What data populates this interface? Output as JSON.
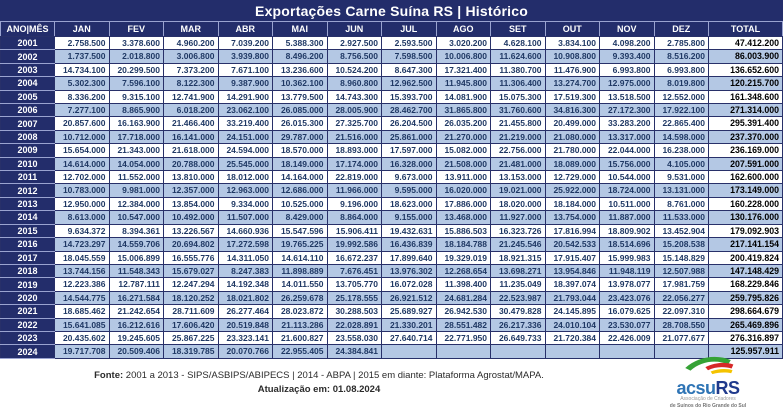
{
  "title": "Exportações Carne Suína RS | Histórico",
  "chart_data": {
    "type": "table",
    "title": "Exportações Carne Suína RS | Histórico",
    "corner_header": "ANO|MÊS",
    "columns": [
      "JAN",
      "FEV",
      "MAR",
      "ABR",
      "MAI",
      "JUN",
      "JUL",
      "AGO",
      "SET",
      "OUT",
      "NOV",
      "DEZ",
      "TOTAL"
    ],
    "rows": [
      {
        "year": "2001",
        "values": [
          "2.758.500",
          "3.378.600",
          "4.960.200",
          "7.039.200",
          "5.388.300",
          "2.927.500",
          "2.593.500",
          "3.020.200",
          "4.628.100",
          "3.834.100",
          "4.098.200",
          "2.785.800"
        ],
        "total": "47.412.200"
      },
      {
        "year": "2002",
        "values": [
          "1.737.500",
          "2.018.800",
          "3.006.800",
          "3.939.800",
          "8.496.200",
          "8.756.500",
          "7.598.500",
          "10.006.800",
          "11.624.600",
          "10.908.800",
          "9.393.400",
          "8.516.200"
        ],
        "total": "86.003.900"
      },
      {
        "year": "2003",
        "values": [
          "14.734.100",
          "20.299.500",
          "7.373.200",
          "7.671.100",
          "13.236.600",
          "10.524.200",
          "8.647.300",
          "17.321.400",
          "11.380.700",
          "11.476.900",
          "6.993.800",
          "6.993.800"
        ],
        "total": "136.652.600"
      },
      {
        "year": "2004",
        "values": [
          "5.302.300",
          "7.596.100",
          "8.122.300",
          "9.387.900",
          "10.362.100",
          "8.960.800",
          "12.962.500",
          "11.945.800",
          "11.306.400",
          "13.274.700",
          "12.975.000",
          "8.019.800"
        ],
        "total": "120.215.700"
      },
      {
        "year": "2005",
        "values": [
          "8.336.200",
          "9.315.100",
          "12.741.900",
          "14.291.900",
          "13.779.500",
          "14.743.300",
          "15.393.700",
          "14.081.900",
          "15.075.300",
          "17.519.300",
          "13.518.500",
          "12.552.000"
        ],
        "total": "161.348.600"
      },
      {
        "year": "2006",
        "values": [
          "7.277.100",
          "8.865.900",
          "6.018.200",
          "23.062.100",
          "26.085.000",
          "28.005.900",
          "28.462.700",
          "31.865.800",
          "31.760.600",
          "34.816.300",
          "27.172.300",
          "17.922.100"
        ],
        "total": "271.314.000"
      },
      {
        "year": "2007",
        "values": [
          "20.857.600",
          "16.163.900",
          "21.466.400",
          "33.219.400",
          "26.015.300",
          "27.325.700",
          "26.204.500",
          "26.035.200",
          "21.455.800",
          "20.499.000",
          "33.283.200",
          "22.865.400"
        ],
        "total": "295.391.400"
      },
      {
        "year": "2008",
        "values": [
          "10.712.000",
          "17.718.000",
          "16.141.000",
          "24.151.000",
          "29.787.000",
          "21.516.000",
          "25.861.000",
          "21.270.000",
          "21.219.000",
          "21.080.000",
          "13.317.000",
          "14.598.000"
        ],
        "total": "237.370.000"
      },
      {
        "year": "2009",
        "values": [
          "15.654.000",
          "21.343.000",
          "21.618.000",
          "24.594.000",
          "18.570.000",
          "18.893.000",
          "17.597.000",
          "15.082.000",
          "22.756.000",
          "21.780.000",
          "22.044.000",
          "16.238.000"
        ],
        "total": "236.169.000"
      },
      {
        "year": "2010",
        "values": [
          "14.614.000",
          "14.054.000",
          "20.788.000",
          "25.545.000",
          "18.149.000",
          "17.174.000",
          "16.328.000",
          "21.508.000",
          "21.481.000",
          "18.089.000",
          "15.756.000",
          "4.105.000"
        ],
        "total": "207.591.000"
      },
      {
        "year": "2011",
        "values": [
          "12.702.000",
          "11.552.000",
          "13.810.000",
          "18.012.000",
          "14.164.000",
          "22.819.000",
          "9.673.000",
          "13.911.000",
          "13.153.000",
          "12.729.000",
          "10.544.000",
          "9.531.000"
        ],
        "total": "162.600.000"
      },
      {
        "year": "2012",
        "values": [
          "10.783.000",
          "9.981.000",
          "12.357.000",
          "12.963.000",
          "12.686.000",
          "11.966.000",
          "9.595.000",
          "16.020.000",
          "19.021.000",
          "25.922.000",
          "18.724.000",
          "13.131.000"
        ],
        "total": "173.149.000"
      },
      {
        "year": "2013",
        "values": [
          "12.950.000",
          "12.384.000",
          "13.854.000",
          "9.334.000",
          "10.525.000",
          "9.196.000",
          "18.623.000",
          "17.886.000",
          "18.020.000",
          "18.184.000",
          "10.511.000",
          "8.761.000"
        ],
        "total": "160.228.000"
      },
      {
        "year": "2014",
        "values": [
          "8.613.000",
          "10.547.000",
          "10.492.000",
          "11.507.000",
          "8.429.000",
          "8.864.000",
          "9.155.000",
          "13.468.000",
          "11.927.000",
          "13.754.000",
          "11.887.000",
          "11.533.000"
        ],
        "total": "130.176.000"
      },
      {
        "year": "2015",
        "values": [
          "9.634.372",
          "8.394.361",
          "13.226.567",
          "14.660.936",
          "15.547.596",
          "15.906.411",
          "19.432.631",
          "15.886.503",
          "16.323.726",
          "17.816.994",
          "18.809.902",
          "13.452.904"
        ],
        "total": "179.092.903"
      },
      {
        "year": "2016",
        "values": [
          "14.723.297",
          "14.559.706",
          "20.694.802",
          "17.272.598",
          "19.765.225",
          "19.992.586",
          "16.436.839",
          "18.184.788",
          "21.245.546",
          "20.542.533",
          "18.514.696",
          "15.208.538"
        ],
        "total": "217.141.154"
      },
      {
        "year": "2017",
        "values": [
          "18.045.559",
          "15.006.899",
          "16.555.776",
          "14.311.050",
          "14.614.110",
          "16.672.237",
          "17.899.640",
          "19.329.019",
          "18.921.315",
          "17.915.407",
          "15.999.983",
          "15.148.829"
        ],
        "total": "200.419.824"
      },
      {
        "year": "2018",
        "values": [
          "13.744.156",
          "11.548.343",
          "15.679.027",
          "8.247.383",
          "11.898.889",
          "7.676.451",
          "13.976.302",
          "12.268.654",
          "13.698.271",
          "13.954.846",
          "11.948.119",
          "12.507.988"
        ],
        "total": "147.148.429"
      },
      {
        "year": "2019",
        "values": [
          "12.223.386",
          "12.787.111",
          "12.247.294",
          "14.192.348",
          "14.011.550",
          "13.705.770",
          "16.072.028",
          "11.398.400",
          "11.235.049",
          "18.397.074",
          "13.978.077",
          "17.981.759"
        ],
        "total": "168.229.846"
      },
      {
        "year": "2020",
        "values": [
          "14.544.775",
          "16.271.584",
          "18.120.252",
          "18.021.802",
          "26.259.678",
          "25.178.555",
          "26.921.512",
          "24.681.284",
          "22.523.987",
          "21.793.044",
          "23.423.076",
          "22.056.277"
        ],
        "total": "259.795.826"
      },
      {
        "year": "2021",
        "values": [
          "18.685.462",
          "21.242.654",
          "28.711.609",
          "26.277.464",
          "28.023.872",
          "30.288.503",
          "25.689.927",
          "26.942.530",
          "30.479.828",
          "24.145.895",
          "16.079.625",
          "22.097.310"
        ],
        "total": "298.664.679"
      },
      {
        "year": "2022",
        "values": [
          "15.641.085",
          "16.212.616",
          "17.606.420",
          "20.519.848",
          "21.113.286",
          "22.028.891",
          "21.330.201",
          "28.551.482",
          "26.217.336",
          "24.010.104",
          "23.530.077",
          "28.708.550"
        ],
        "total": "265.469.896"
      },
      {
        "year": "2023",
        "values": [
          "20.435.602",
          "19.245.605",
          "25.867.225",
          "23.323.141",
          "21.600.827",
          "23.558.030",
          "27.640.714",
          "22.771.950",
          "26.649.733",
          "21.720.384",
          "22.426.009",
          "21.077.677"
        ],
        "total": "276.316.897"
      },
      {
        "year": "2024",
        "values": [
          "19.717.708",
          "20.509.406",
          "18.319.785",
          "20.070.766",
          "22.955.405",
          "24.384.841",
          "",
          "",
          "",
          "",
          "",
          ""
        ],
        "total": "125.957.911"
      }
    ]
  },
  "footer": {
    "fonte_label": "Fonte:",
    "fonte_text": " 2001 a 2013 - SIPS/ASBIPS/ABIPECS | 2014 - ABPA | 2015 em diante: Plataforma Agrostat/MAPA.",
    "update_label": "Atualização em:",
    "update_value": " 01.08.2024",
    "logo": {
      "text_main": "acsu",
      "text_accent": "RS",
      "tagline_line1": "Associação de Criadores",
      "tagline_line2": "de Suínos do Rio Grande do Sul"
    }
  },
  "colors": {
    "header_navy": "#232d6b",
    "row_alt_blue": "#b4c8e4",
    "row_white": "#ffffff",
    "cell_text": "#1f3864",
    "total_text": "#000000",
    "logo_blue": "#2e74b5",
    "logo_navy": "#203a8c",
    "swoosh_green": "#35a235",
    "swoosh_red": "#d62828",
    "swoosh_yellow": "#f4c300"
  }
}
